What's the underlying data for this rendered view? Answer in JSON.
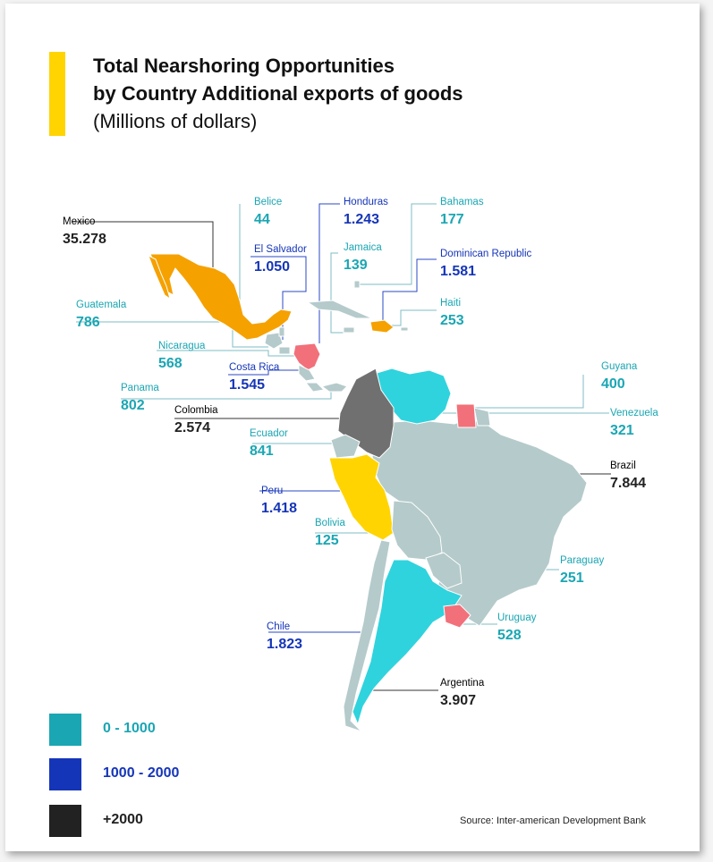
{
  "title": {
    "line1": "Total Nearshoring Opportunities",
    "line2": "by Country Additional exports of goods",
    "line3": "(Millions of dollars)"
  },
  "colors": {
    "accent": "#FFD400",
    "teal": "#1AA6B3",
    "blue": "#1535B8",
    "black": "#222222",
    "map_gray": "#B5CACB",
    "map_orange": "#F5A100",
    "map_yellow": "#FFD400",
    "map_cyan": "#2FD3DD",
    "map_pink": "#F2707A",
    "map_dark": "#707070"
  },
  "countries": [
    {
      "id": "mexico",
      "name": "Mexico",
      "value": "35.278",
      "tier": "+2000"
    },
    {
      "id": "belice",
      "name": "Belice",
      "value": "44",
      "tier": "0 - 1000"
    },
    {
      "id": "honduras",
      "name": "Honduras",
      "value": "1.243",
      "tier": "1000 - 2000"
    },
    {
      "id": "bahamas",
      "name": "Bahamas",
      "value": "177",
      "tier": "0 - 1000"
    },
    {
      "id": "el_salvador",
      "name": "El Salvador",
      "value": "1.050",
      "tier": "1000 - 2000"
    },
    {
      "id": "jamaica",
      "name": "Jamaica",
      "value": "139",
      "tier": "0 - 1000"
    },
    {
      "id": "dominican_republic",
      "name": "Dominican Republic",
      "value": "1.581",
      "tier": "1000 - 2000"
    },
    {
      "id": "guatemala",
      "name": "Guatemala",
      "value": "786",
      "tier": "0 - 1000"
    },
    {
      "id": "haiti",
      "name": "Haiti",
      "value": "253",
      "tier": "0 - 1000"
    },
    {
      "id": "nicaragua",
      "name": "Nicaragua",
      "value": "568",
      "tier": "0 - 1000"
    },
    {
      "id": "costa_rica",
      "name": "Costa Rica",
      "value": "1.545",
      "tier": "1000 - 2000"
    },
    {
      "id": "guyana",
      "name": "Guyana",
      "value": "400",
      "tier": "0 - 1000"
    },
    {
      "id": "panama",
      "name": "Panama",
      "value": "802",
      "tier": "0 - 1000"
    },
    {
      "id": "colombia",
      "name": "Colombia",
      "value": "2.574",
      "tier": "+2000"
    },
    {
      "id": "venezuela",
      "name": "Venezuela",
      "value": "321",
      "tier": "0 - 1000"
    },
    {
      "id": "ecuador",
      "name": "Ecuador",
      "value": "841",
      "tier": "0 - 1000"
    },
    {
      "id": "brazil",
      "name": "Brazil",
      "value": "7.844",
      "tier": "+2000"
    },
    {
      "id": "peru",
      "name": "Peru",
      "value": "1.418",
      "tier": "1000 - 2000"
    },
    {
      "id": "bolivia",
      "name": "Bolivia",
      "value": "125",
      "tier": "0 - 1000"
    },
    {
      "id": "paraguay",
      "name": "Paraguay",
      "value": "251",
      "tier": "0 - 1000"
    },
    {
      "id": "chile",
      "name": "Chile",
      "value": "1.823",
      "tier": "1000 - 2000"
    },
    {
      "id": "uruguay",
      "name": "Uruguay",
      "value": "528",
      "tier": "0 - 1000"
    },
    {
      "id": "argentina",
      "name": "Argentina",
      "value": "3.907",
      "tier": "+2000"
    }
  ],
  "legend": [
    {
      "label": "0 - 1000",
      "color": "#1AA6B3"
    },
    {
      "label": "1000 - 2000",
      "color": "#1535B8"
    },
    {
      "label": "+2000",
      "color": "#222222"
    }
  ],
  "source": "Source: Inter-american Development Bank"
}
